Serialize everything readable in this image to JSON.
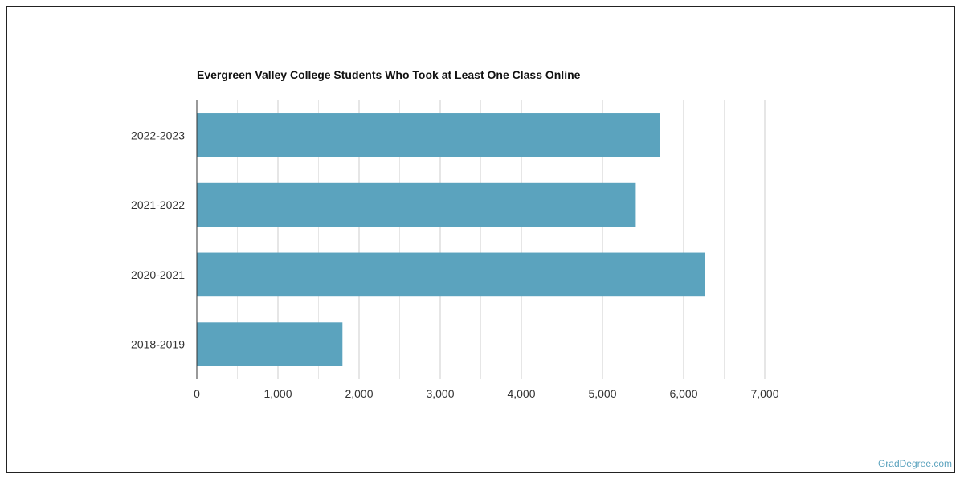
{
  "watermark": "GradDegree.com",
  "chart_data": {
    "type": "bar",
    "orientation": "horizontal",
    "title": "Evergreen Valley College Students Who Took at Least One Class Online",
    "xlabel": "",
    "ylabel": "",
    "categories": [
      "2022-2023",
      "2021-2022",
      "2020-2021",
      "2018-2019"
    ],
    "values": [
      5710,
      5410,
      6265,
      1795
    ],
    "xlim": [
      0,
      7000
    ],
    "x_ticks": [
      0,
      1000,
      2000,
      3000,
      4000,
      5000,
      6000,
      7000
    ],
    "x_tick_labels": [
      "0",
      "1,000",
      "2,000",
      "3,000",
      "4,000",
      "5,000",
      "6,000",
      "7,000"
    ],
    "grid": true,
    "bar_color": "#5ba3be",
    "grid_color": "#cccccc"
  }
}
